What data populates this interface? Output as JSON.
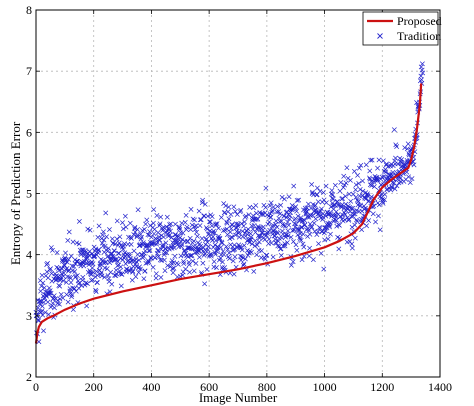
{
  "chart_data": {
    "type": "line",
    "xlabel": "Image Number",
    "ylabel": "Entropy of Prediction Error",
    "xlim": [
      0,
      1400
    ],
    "ylim": [
      2,
      8
    ],
    "xticks": [
      "0",
      "200",
      "400",
      "600",
      "800",
      "1000",
      "1200",
      "1400"
    ],
    "yticks": [
      "2",
      "3",
      "4",
      "5",
      "6",
      "7",
      "8"
    ],
    "grid": true,
    "legend_position": "top-right",
    "colors": {
      "proposed": "#cc1111",
      "tradition": "#2222cc"
    },
    "series": [
      {
        "name": "Proposed",
        "style": "line",
        "x": [
          0,
          5,
          10,
          20,
          40,
          60,
          100,
          150,
          200,
          300,
          400,
          500,
          600,
          700,
          800,
          900,
          1000,
          1050,
          1100,
          1130,
          1150,
          1170,
          1200,
          1230,
          1260,
          1290,
          1300,
          1310,
          1320,
          1330,
          1335
        ],
        "y": [
          2.55,
          2.72,
          2.82,
          2.9,
          2.96,
          3.0,
          3.1,
          3.2,
          3.28,
          3.4,
          3.5,
          3.6,
          3.68,
          3.76,
          3.86,
          3.98,
          4.12,
          4.22,
          4.35,
          4.5,
          4.7,
          4.9,
          5.1,
          5.22,
          5.32,
          5.42,
          5.55,
          5.75,
          6.05,
          6.45,
          6.8
        ]
      },
      {
        "name": "Tradition",
        "style": "markers",
        "marker": "x",
        "trend_x": [
          0,
          5,
          10,
          20,
          40,
          60,
          100,
          150,
          200,
          300,
          400,
          500,
          600,
          700,
          800,
          900,
          1000,
          1050,
          1100,
          1150,
          1200,
          1250,
          1280,
          1300,
          1310,
          1320,
          1330,
          1340
        ],
        "trend_y": [
          2.7,
          2.95,
          3.1,
          3.25,
          3.4,
          3.5,
          3.65,
          3.8,
          3.9,
          4.0,
          4.08,
          4.15,
          4.22,
          4.3,
          4.4,
          4.5,
          4.62,
          4.72,
          4.85,
          5.0,
          5.15,
          5.3,
          5.4,
          5.55,
          5.75,
          6.1,
          6.6,
          7.0
        ],
        "spread": 0.38,
        "count": 1338
      }
    ]
  }
}
